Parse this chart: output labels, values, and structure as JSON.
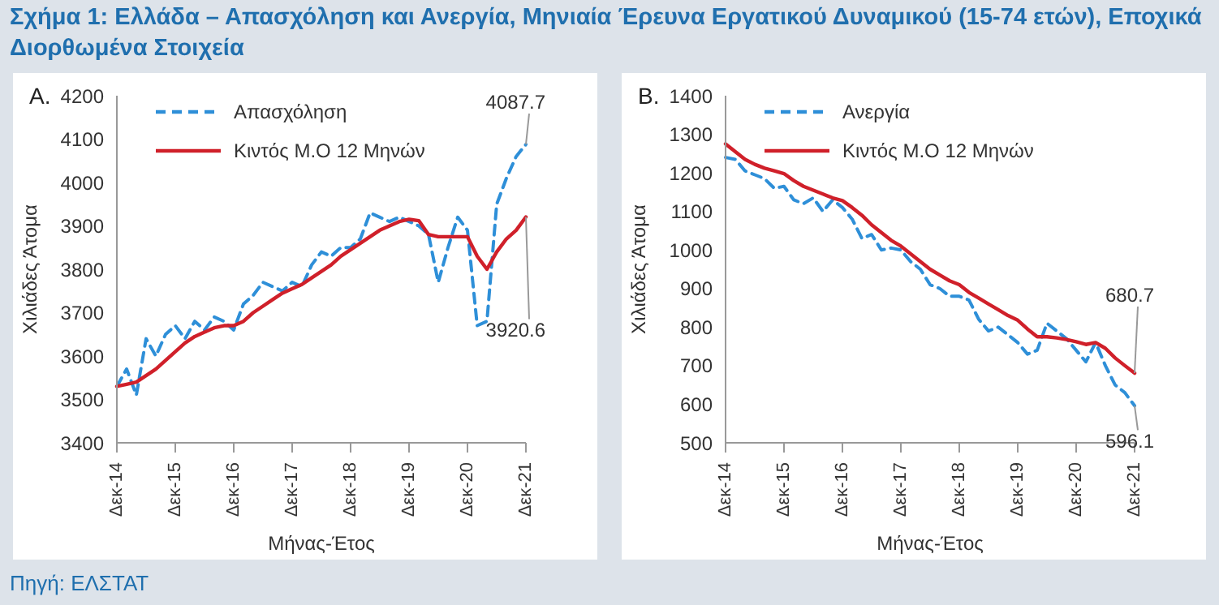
{
  "chart_data": [
    {
      "type": "line",
      "title": "Σχήμα 1: Ελλάδα – Απασχόληση και Ανεργία, Μηνιαία Έρευνα Εργατικού Δυναμικού (15-74 ετών), Εποχικά Διορθωμένα Στοιχεία",
      "xlabel": "Μήνας-Έτος",
      "ylabel": "Χιλιάδες Άτομα",
      "annotations": [
        "A.",
        {
          "text": "4087.7",
          "x": "Δεκ-21",
          "y": 4087.7
        },
        {
          "text": "3920.6",
          "x": "Δεκ-21",
          "y": 3920.6
        },
        "Πηγή: ΕΛΣΤΑΤ"
      ],
      "categories": [
        "Δεκ-14",
        null,
        null,
        null,
        null,
        null,
        "Δεκ-15",
        null,
        null,
        null,
        null,
        null,
        "Δεκ-16",
        null,
        null,
        null,
        null,
        null,
        "Δεκ-17",
        null,
        null,
        null,
        null,
        null,
        "Δεκ-18",
        null,
        null,
        null,
        null,
        null,
        "Δεκ-19",
        null,
        null,
        null,
        null,
        null,
        "Δεκ-20",
        null,
        null,
        null,
        null,
        null,
        "Δεκ-21"
      ],
      "series": [
        {
          "name": "Απασχόληση",
          "color": "#2e8fd8",
          "line_style": "dashed",
          "values": [
            3530,
            3570,
            3510,
            3640,
            3600,
            3650,
            3670,
            3640,
            3680,
            3660,
            3690,
            3680,
            3660,
            3720,
            3740,
            3770,
            3760,
            3750,
            3770,
            3760,
            3810,
            3840,
            3830,
            3850,
            3850,
            3870,
            3930,
            3920,
            3910,
            3920,
            3910,
            3900,
            3880,
            3770,
            3850,
            3920,
            3890,
            3670,
            3680,
            3950,
            4010,
            4060,
            4087.7
          ]
        },
        {
          "name": "Κιντός Μ.Ο 12 Μηνών",
          "color": "#d0202a",
          "line_style": "solid",
          "values": [
            3530,
            3535,
            3540,
            3555,
            3570,
            3590,
            3610,
            3630,
            3645,
            3655,
            3665,
            3670,
            3670,
            3680,
            3700,
            3715,
            3730,
            3745,
            3755,
            3765,
            3780,
            3795,
            3810,
            3830,
            3845,
            3860,
            3875,
            3890,
            3900,
            3910,
            3915,
            3912,
            3880,
            3875,
            3875,
            3875,
            3875,
            3830,
            3800,
            3840,
            3870,
            3890,
            3920.6
          ]
        }
      ],
      "ylim": [
        3400,
        4200
      ],
      "yticks": [
        3400,
        3500,
        3600,
        3700,
        3800,
        3900,
        4000,
        4100,
        4200
      ],
      "grid": false,
      "legend": "top",
      "marker": "none"
    },
    {
      "type": "line",
      "xlabel": "Μήνας-Έτος",
      "ylabel": "Χιλιάδες Άτομα",
      "annotations": [
        "B.",
        {
          "text": "680.7",
          "x": "Δεκ-21",
          "y": 680.7
        },
        {
          "text": "596.1",
          "x": "Δεκ-21",
          "y": 596.1
        }
      ],
      "categories": [
        "Δεκ-14",
        null,
        null,
        null,
        null,
        null,
        "Δεκ-15",
        null,
        null,
        null,
        null,
        null,
        "Δεκ-16",
        null,
        null,
        null,
        null,
        null,
        "Δεκ-17",
        null,
        null,
        null,
        null,
        null,
        "Δεκ-18",
        null,
        null,
        null,
        null,
        null,
        "Δεκ-19",
        null,
        null,
        null,
        null,
        null,
        "Δεκ-20",
        null,
        null,
        null,
        null,
        null,
        "Δεκ-21"
      ],
      "series": [
        {
          "name": "Ανεργία",
          "color": "#2e8fd8",
          "line_style": "dashed",
          "values": [
            1240,
            1235,
            1205,
            1195,
            1185,
            1160,
            1165,
            1130,
            1120,
            1135,
            1100,
            1130,
            1110,
            1080,
            1030,
            1040,
            1000,
            1005,
            1000,
            970,
            950,
            910,
            900,
            880,
            880,
            870,
            820,
            790,
            800,
            780,
            760,
            730,
            740,
            810,
            790,
            770,
            740,
            710,
            760,
            700,
            650,
            630,
            596.1
          ]
        },
        {
          "name": "Κιντός Μ.Ο 12 Μηνών",
          "color": "#d0202a",
          "line_style": "solid",
          "values": [
            1275,
            1255,
            1235,
            1222,
            1212,
            1205,
            1198,
            1180,
            1165,
            1155,
            1145,
            1135,
            1128,
            1110,
            1090,
            1065,
            1045,
            1025,
            1010,
            990,
            970,
            950,
            935,
            920,
            910,
            890,
            875,
            860,
            845,
            830,
            818,
            795,
            775,
            775,
            772,
            768,
            762,
            755,
            760,
            745,
            720,
            700,
            680.7
          ]
        }
      ],
      "ylim": [
        500,
        1400
      ],
      "yticks": [
        500,
        600,
        700,
        800,
        900,
        1000,
        1100,
        1200,
        1300,
        1400
      ],
      "grid": false,
      "legend": "top",
      "marker": "none"
    }
  ]
}
